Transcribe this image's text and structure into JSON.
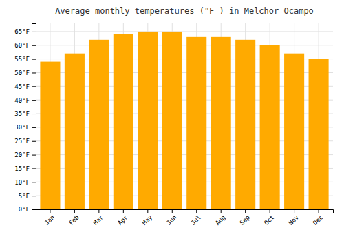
{
  "chart_data": {
    "type": "bar",
    "title": "Average monthly temperatures (°F ) in Melchor Ocampo",
    "categories": [
      "Jan",
      "Feb",
      "Mar",
      "Apr",
      "May",
      "Jun",
      "Jul",
      "Aug",
      "Sep",
      "Oct",
      "Nov",
      "Dec"
    ],
    "values": [
      54,
      57,
      62,
      64,
      65,
      65,
      63,
      63,
      62,
      60,
      57,
      55
    ],
    "color": "#FFAA00",
    "ylim": [
      0,
      68
    ],
    "yticks": [
      {
        "value": 0,
        "label": "0°F"
      },
      {
        "value": 5,
        "label": "5°F"
      },
      {
        "value": 10,
        "label": "10°F"
      },
      {
        "value": 15,
        "label": "15°F"
      },
      {
        "value": 20,
        "label": "20°F"
      },
      {
        "value": 25,
        "label": "25°F"
      },
      {
        "value": 30,
        "label": "30°F"
      },
      {
        "value": 35,
        "label": "35°F"
      },
      {
        "value": 40,
        "label": "40°F"
      },
      {
        "value": 45,
        "label": "45°F"
      },
      {
        "value": 50,
        "label": "50°F"
      },
      {
        "value": 55,
        "label": "55°F"
      },
      {
        "value": 60,
        "label": "60°F"
      },
      {
        "value": 65,
        "label": "65°F"
      }
    ],
    "grid": true
  }
}
